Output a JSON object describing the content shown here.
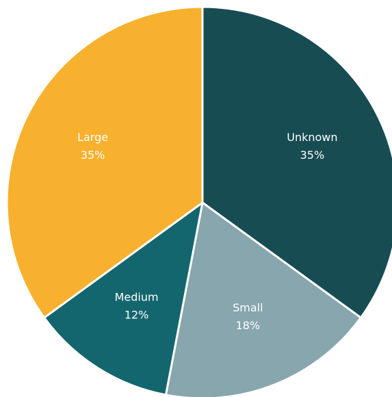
{
  "chart_data": {
    "type": "pie",
    "title": "",
    "slices": [
      {
        "label": "Unknown",
        "value": 35,
        "display": "35%",
        "color": "#174c53"
      },
      {
        "label": "Small",
        "value": 18,
        "display": "18%",
        "color": "#87a6ad"
      },
      {
        "label": "Medium",
        "value": 12,
        "display": "12%",
        "color": "#13666d"
      },
      {
        "label": "Large",
        "value": 35,
        "display": "35%",
        "color": "#f8b12e"
      }
    ],
    "start_angle": "12 o'clock",
    "direction": "clockwise",
    "legend": "none"
  }
}
